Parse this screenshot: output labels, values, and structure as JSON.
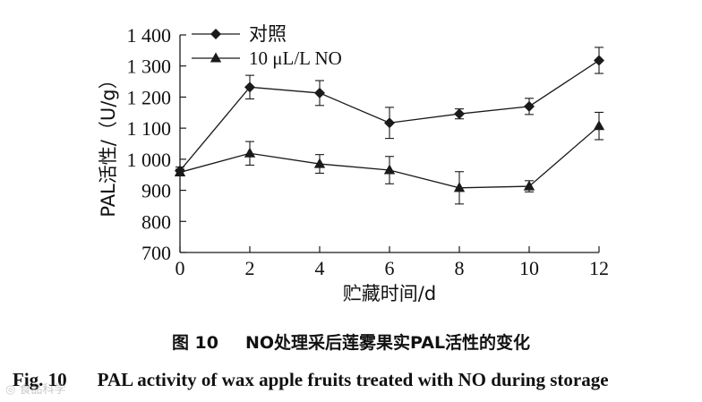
{
  "chart_data": {
    "type": "line",
    "x": [
      0,
      2,
      4,
      6,
      8,
      10,
      12
    ],
    "xlabel": "贮藏时间/d",
    "ylabel": "PAL活性/（U/g）",
    "xlim": [
      0,
      12
    ],
    "ylim": [
      700,
      1400
    ],
    "xticks": [
      0,
      2,
      4,
      6,
      8,
      10,
      12
    ],
    "xtick_labels": [
      "0",
      "2",
      "4",
      "6",
      "8",
      "10",
      "12"
    ],
    "yticks": [
      700,
      800,
      900,
      1000,
      1100,
      1200,
      1300,
      1400
    ],
    "ytick_labels": [
      "700",
      "800",
      "900",
      "1 000",
      "1 100",
      "1 200",
      "1 300",
      "1 400"
    ],
    "grid": false,
    "legend_position": "top-left",
    "series": [
      {
        "name": "对照",
        "marker": "diamond",
        "color": "#1a1a1a",
        "values": [
          963,
          1232,
          1213,
          1117,
          1146,
          1170,
          1318
        ],
        "errors": [
          12,
          38,
          40,
          50,
          16,
          26,
          42
        ]
      },
      {
        "name": "10 μL/L NO",
        "marker": "triangle",
        "color": "#1a1a1a",
        "values": [
          958,
          1019,
          985,
          965,
          908,
          913,
          1107
        ],
        "errors": [
          10,
          38,
          30,
          44,
          52,
          18,
          44
        ]
      }
    ]
  },
  "caption": {
    "cn_num": "图 10",
    "cn_text": "NO处理采后莲雾果实PAL活性的变化",
    "en_num": "Fig. 10",
    "en_text": "PAL activity of wax apple fruits treated with NO during storage"
  },
  "watermark": "◎ 食品科学"
}
